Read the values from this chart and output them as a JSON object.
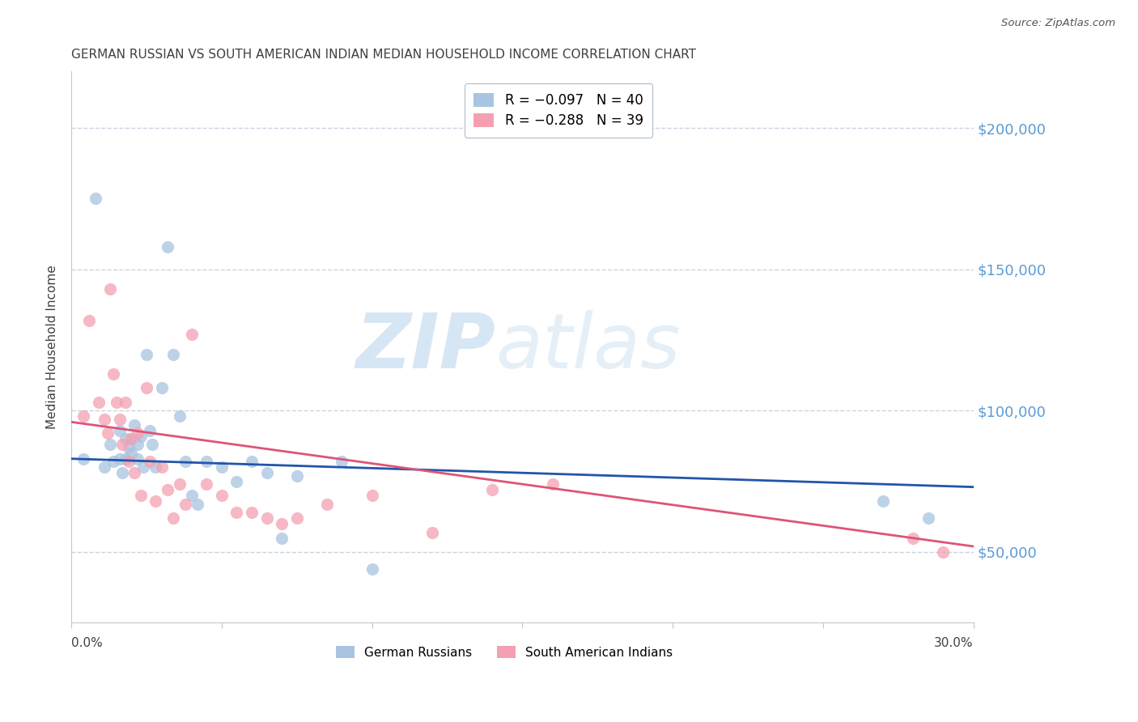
{
  "title": "GERMAN RUSSIAN VS SOUTH AMERICAN INDIAN MEDIAN HOUSEHOLD INCOME CORRELATION CHART",
  "source": "Source: ZipAtlas.com",
  "ylabel": "Median Household Income",
  "watermark_zip": "ZIP",
  "watermark_atlas": "atlas",
  "y_tick_values": [
    50000,
    100000,
    150000,
    200000
  ],
  "y_min": 25000,
  "y_max": 220000,
  "x_min": 0.0,
  "x_max": 0.3,
  "right_axis_color": "#5b9bd5",
  "title_color": "#404040",
  "source_color": "#555555",
  "scatter_blue_color": "#a8c4e0",
  "scatter_pink_color": "#f4a0b0",
  "line_blue_color": "#2255aa",
  "line_pink_color": "#dd5577",
  "grid_color": "#c8d4e0",
  "background_color": "#ffffff",
  "blue_points_x": [
    0.004,
    0.008,
    0.011,
    0.013,
    0.014,
    0.016,
    0.016,
    0.017,
    0.018,
    0.018,
    0.019,
    0.02,
    0.02,
    0.021,
    0.022,
    0.022,
    0.023,
    0.024,
    0.025,
    0.026,
    0.027,
    0.028,
    0.03,
    0.032,
    0.034,
    0.036,
    0.038,
    0.04,
    0.042,
    0.045,
    0.05,
    0.055,
    0.06,
    0.065,
    0.07,
    0.075,
    0.09,
    0.1,
    0.27,
    0.285
  ],
  "blue_points_y": [
    83000,
    175000,
    80000,
    88000,
    82000,
    93000,
    83000,
    78000,
    90000,
    83000,
    87000,
    90000,
    85000,
    95000,
    88000,
    83000,
    91000,
    80000,
    120000,
    93000,
    88000,
    80000,
    108000,
    158000,
    120000,
    98000,
    82000,
    70000,
    67000,
    82000,
    80000,
    75000,
    82000,
    78000,
    55000,
    77000,
    82000,
    44000,
    68000,
    62000
  ],
  "pink_points_x": [
    0.004,
    0.006,
    0.009,
    0.011,
    0.012,
    0.013,
    0.014,
    0.015,
    0.016,
    0.017,
    0.018,
    0.019,
    0.02,
    0.021,
    0.022,
    0.023,
    0.025,
    0.026,
    0.028,
    0.03,
    0.032,
    0.034,
    0.036,
    0.038,
    0.04,
    0.045,
    0.05,
    0.055,
    0.06,
    0.065,
    0.07,
    0.075,
    0.085,
    0.1,
    0.12,
    0.14,
    0.16,
    0.28,
    0.29
  ],
  "pink_points_y": [
    98000,
    132000,
    103000,
    97000,
    92000,
    143000,
    113000,
    103000,
    97000,
    88000,
    103000,
    82000,
    90000,
    78000,
    92000,
    70000,
    108000,
    82000,
    68000,
    80000,
    72000,
    62000,
    74000,
    67000,
    127000,
    74000,
    70000,
    64000,
    64000,
    62000,
    60000,
    62000,
    67000,
    70000,
    57000,
    72000,
    74000,
    55000,
    50000
  ],
  "blue_trend_x": [
    0.0,
    0.3
  ],
  "blue_trend_y": [
    83000,
    73000
  ],
  "pink_trend_x": [
    0.0,
    0.3
  ],
  "pink_trend_y": [
    96000,
    52000
  ]
}
